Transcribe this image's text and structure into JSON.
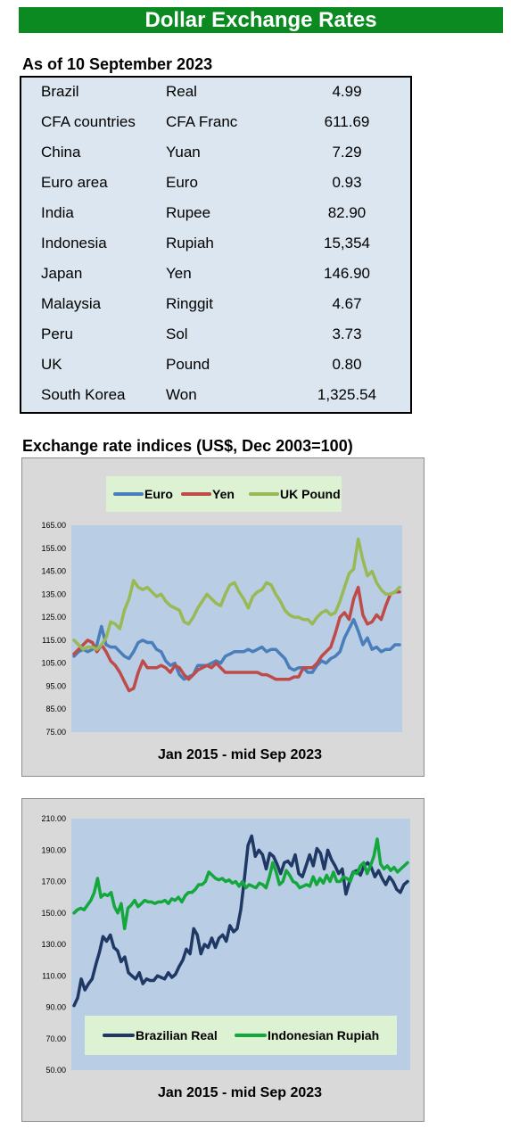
{
  "header": {
    "title": "Dollar Exchange Rates"
  },
  "rates": {
    "date_label": "As of 10 September 2023",
    "rows": [
      {
        "country": "Brazil",
        "currency": "Real",
        "value": "4.99"
      },
      {
        "country": "CFA countries",
        "currency": "CFA Franc",
        "value": "611.69"
      },
      {
        "country": "China",
        "currency": "Yuan",
        "value": "7.29"
      },
      {
        "country": "Euro area",
        "currency": "Euro",
        "value": "0.93"
      },
      {
        "country": "India",
        "currency": "Rupee",
        "value": "82.90"
      },
      {
        "country": "Indonesia",
        "currency": "Rupiah",
        "value": "15,354"
      },
      {
        "country": "Japan",
        "currency": "Yen",
        "value": "146.90"
      },
      {
        "country": "Malaysia",
        "currency": "Ringgit",
        "value": "4.67"
      },
      {
        "country": "Peru",
        "currency": "Sol",
        "value": "3.73"
      },
      {
        "country": "UK",
        "currency": "Pound",
        "value": "0.80"
      },
      {
        "country": "South Korea",
        "currency": "Won",
        "value": "1,325.54"
      }
    ]
  },
  "indices_title": "Exchange rate indices (US$, Dec 2003=100)",
  "chart_data": [
    {
      "type": "line",
      "title": "",
      "xlabel": "Jan 2015 - mid Sep 2023",
      "ylabel": "",
      "ylim": [
        75,
        165
      ],
      "y_ticks": [
        "75.00",
        "85.00",
        "95.00",
        "105.00",
        "115.00",
        "125.00",
        "135.00",
        "145.00",
        "155.00",
        "165.00"
      ],
      "x_range": [
        "Jan 2015",
        "mid Sep 2023"
      ],
      "legend_position": "top",
      "grid": false,
      "series": [
        {
          "name": "Euro",
          "color": "#4a7ebb",
          "values": [
            108,
            110,
            111,
            110,
            111,
            113,
            121,
            113,
            112,
            112,
            110,
            108,
            107,
            110,
            114,
            115,
            114,
            114,
            111,
            110,
            106,
            104,
            105,
            100,
            98,
            99,
            100,
            104,
            104,
            104,
            105,
            106,
            105,
            108,
            109,
            110,
            110,
            110,
            111,
            110,
            111,
            112,
            110,
            111,
            111,
            109,
            107,
            103,
            102,
            103,
            103,
            101,
            101,
            104,
            106,
            105,
            107,
            108,
            110,
            116,
            120,
            124,
            119,
            113,
            116,
            111,
            112,
            110,
            111,
            111,
            113,
            113
          ]
        },
        {
          "name": "Yen",
          "color": "#be4b48",
          "values": [
            109,
            111,
            113,
            115,
            114,
            110,
            113,
            110,
            106,
            104,
            101,
            97,
            93,
            94,
            101,
            106,
            103,
            103,
            103,
            104,
            103,
            101,
            104,
            103,
            100,
            98,
            100,
            102,
            103,
            104,
            103,
            105,
            103,
            101,
            101,
            101,
            101,
            101,
            101,
            101,
            101,
            100,
            100,
            99,
            98,
            98,
            98,
            98,
            99,
            99,
            103,
            103,
            103,
            105,
            108,
            110,
            112,
            118,
            125,
            127,
            124,
            133,
            138,
            126,
            122,
            123,
            126,
            124,
            130,
            135,
            136,
            136
          ]
        },
        {
          "name": "UK Pound",
          "color": "#98b954",
          "values": [
            115,
            113,
            111,
            112,
            112,
            111,
            113,
            116,
            123,
            122,
            120,
            128,
            133,
            141,
            138,
            137,
            138,
            136,
            134,
            135,
            132,
            130,
            129,
            128,
            123,
            122,
            125,
            129,
            132,
            135,
            133,
            131,
            130,
            135,
            139,
            140,
            136,
            133,
            129,
            134,
            136,
            137,
            140,
            139,
            135,
            132,
            128,
            126,
            125,
            125,
            124,
            124,
            122,
            125,
            127,
            128,
            126,
            127,
            132,
            138,
            144,
            146,
            159,
            150,
            143,
            145,
            140,
            137,
            135,
            135,
            136,
            138
          ]
        }
      ]
    },
    {
      "type": "line",
      "title": "",
      "xlabel": "Jan 2015 - mid Sep 2023",
      "ylabel": "",
      "ylim": [
        50,
        210
      ],
      "y_ticks": [
        "50.00",
        "70.00",
        "90.00",
        "110.00",
        "130.00",
        "150.00",
        "170.00",
        "190.00",
        "210.00"
      ],
      "x_range": [
        "Jan 2015",
        "mid Sep 2023"
      ],
      "legend_position": "bottom",
      "grid": false,
      "series": [
        {
          "name": "Brazilian Real",
          "color": "#1f3864",
          "values": [
            91,
            96,
            108,
            101,
            105,
            108,
            117,
            125,
            135,
            132,
            136,
            128,
            126,
            119,
            122,
            112,
            110,
            108,
            112,
            105,
            108,
            107,
            107,
            110,
            109,
            108,
            112,
            109,
            111,
            116,
            120,
            127,
            124,
            140,
            136,
            124,
            130,
            128,
            134,
            128,
            134,
            136,
            132,
            142,
            138,
            140,
            152,
            172,
            193,
            199,
            186,
            190,
            187,
            178,
            188,
            186,
            181,
            175,
            182,
            183,
            180,
            187,
            175,
            173,
            180,
            187,
            180,
            191,
            188,
            178,
            190,
            184,
            180,
            175,
            178,
            162,
            170,
            176,
            177,
            174,
            180,
            182,
            179,
            173,
            177,
            172,
            168,
            173,
            170,
            165,
            163,
            168,
            170
          ]
        },
        {
          "name": "Indonesian Rupiah",
          "color": "#14a83c",
          "values": [
            150,
            152,
            153,
            152,
            155,
            158,
            163,
            172,
            160,
            162,
            161,
            163,
            154,
            150,
            156,
            140,
            153,
            155,
            158,
            154,
            156,
            158,
            157,
            157,
            156,
            157,
            157,
            158,
            156,
            159,
            158,
            160,
            157,
            161,
            163,
            163,
            165,
            168,
            168,
            170,
            176,
            174,
            172,
            171,
            172,
            170,
            171,
            169,
            170,
            167,
            170,
            166,
            168,
            167,
            166,
            169,
            168,
            166,
            173,
            182,
            176,
            168,
            170,
            177,
            174,
            170,
            169,
            166,
            167,
            168,
            167,
            173,
            168,
            172,
            169,
            174,
            170,
            176,
            170,
            170,
            173,
            172,
            170,
            176,
            175,
            180,
            182,
            175,
            180,
            186,
            197,
            181,
            178,
            180,
            177,
            179,
            176,
            178,
            180,
            182
          ]
        }
      ]
    }
  ]
}
